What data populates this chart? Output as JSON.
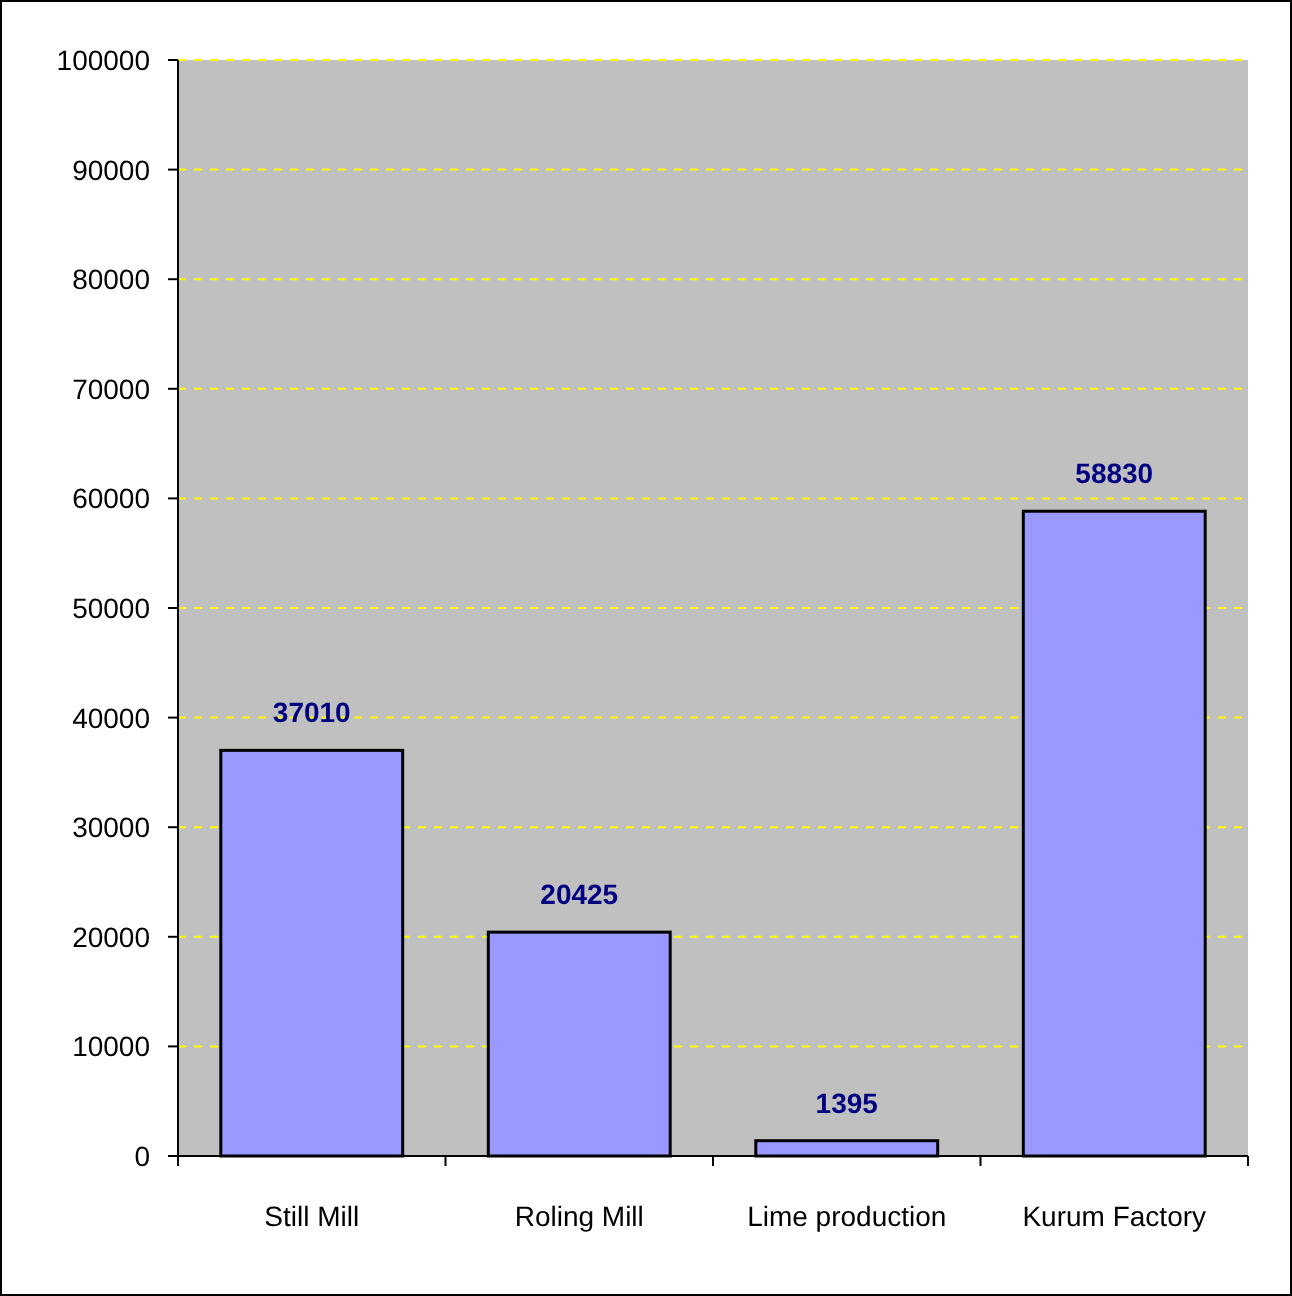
{
  "chart_data": {
    "type": "bar",
    "categories": [
      "Still Mill",
      "Roling Mill",
      "Lime production",
      "Kurum Factory"
    ],
    "values": [
      37010,
      20425,
      1395,
      58830
    ],
    "color": "#9999ff",
    "ylim": [
      0,
      100000
    ],
    "yticks": [
      0,
      10000,
      20000,
      30000,
      40000,
      50000,
      60000,
      70000,
      80000,
      90000,
      100000
    ],
    "grid": "y",
    "data_labels": true
  }
}
